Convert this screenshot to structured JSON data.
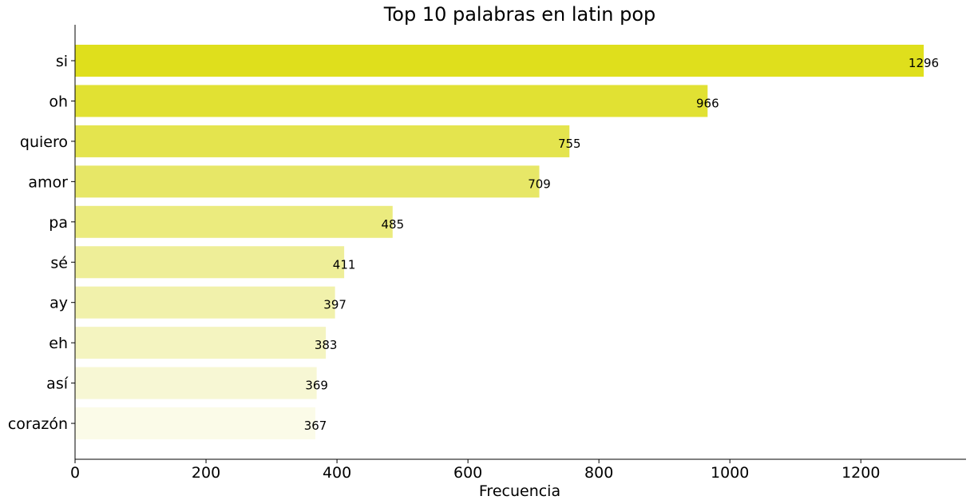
{
  "chart_data": {
    "type": "bar",
    "orientation": "horizontal",
    "title": "Top 10 palabras en latin pop",
    "xlabel": "Frecuencia",
    "ylabel": "",
    "categories": [
      "si",
      "oh",
      "quiero",
      "amor",
      "pa",
      "sé",
      "ay",
      "eh",
      "así",
      "corazón"
    ],
    "values": [
      1296,
      966,
      755,
      709,
      485,
      411,
      397,
      383,
      369,
      367
    ],
    "data_labels": [
      "1296",
      "966",
      "755",
      "709",
      "485",
      "411",
      "397",
      "383",
      "369",
      "367"
    ],
    "colors": [
      "#dfdf1c",
      "#e1e133",
      "#e4e44e",
      "#e7e767",
      "#ebeb7e",
      "#eeee98",
      "#f1f1ab",
      "#f4f4c0",
      "#f7f7d4",
      "#fbfbe8"
    ],
    "xlim": [
      0,
      1360
    ],
    "xticks": [
      0,
      200,
      400,
      600,
      800,
      1000,
      1200
    ],
    "xtick_labels": [
      "0",
      "200",
      "400",
      "600",
      "800",
      "1000",
      "1200"
    ],
    "grid": false,
    "legend": "none"
  }
}
